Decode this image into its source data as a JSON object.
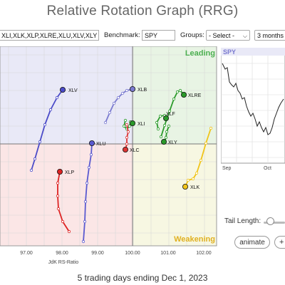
{
  "title": "Relative Rotation Graph (RRG)",
  "toolbar": {
    "symbols_value": "XLI,XLK,XLP,XLRE,XLU,XLV,XLY",
    "benchmark_label": "Benchmark:",
    "benchmark_value": "SPY",
    "groups_label": "Groups:",
    "groups_value": "- Select -",
    "period_value": "3 months"
  },
  "chart": {
    "quadrant_leading": "Leading",
    "quadrant_weakening": "Weakening",
    "x_axis_label": "JdK RS-Ratio",
    "x_ticks": [
      "97.00",
      "98.00",
      "99.00",
      "100.00",
      "101.00",
      "102.00"
    ],
    "colors": {
      "leading": "#e8f4e4",
      "weakening": "#f7f7e2",
      "lagging": "#fbe6e6",
      "improving": "#e9e9f7"
    }
  },
  "series": [
    {
      "symbol": "XLV",
      "color": "#4b4bc8"
    },
    {
      "symbol": "XLB",
      "color": "#7b7bd0"
    },
    {
      "symbol": "XLRE",
      "color": "#2a9a2a"
    },
    {
      "symbol": "XLI",
      "color": "#2a9a2a"
    },
    {
      "symbol": "XLF",
      "color": "#2a9a2a"
    },
    {
      "symbol": "XLY",
      "color": "#2a9a2a"
    },
    {
      "symbol": "XLU",
      "color": "#5a5ad0"
    },
    {
      "symbol": "XLC",
      "color": "#dd3333"
    },
    {
      "symbol": "XLP",
      "color": "#dd2222"
    },
    {
      "symbol": "XLK",
      "color": "#f0c419"
    }
  ],
  "spy_panel": {
    "label": "SPY",
    "x_ticks": [
      "Sep",
      "Oct"
    ]
  },
  "controls": {
    "tail_length_label": "Tail Length:",
    "animate_label": "animate",
    "plus_label": "+"
  },
  "footer": "5 trading days ending Dec 1, 2023"
}
